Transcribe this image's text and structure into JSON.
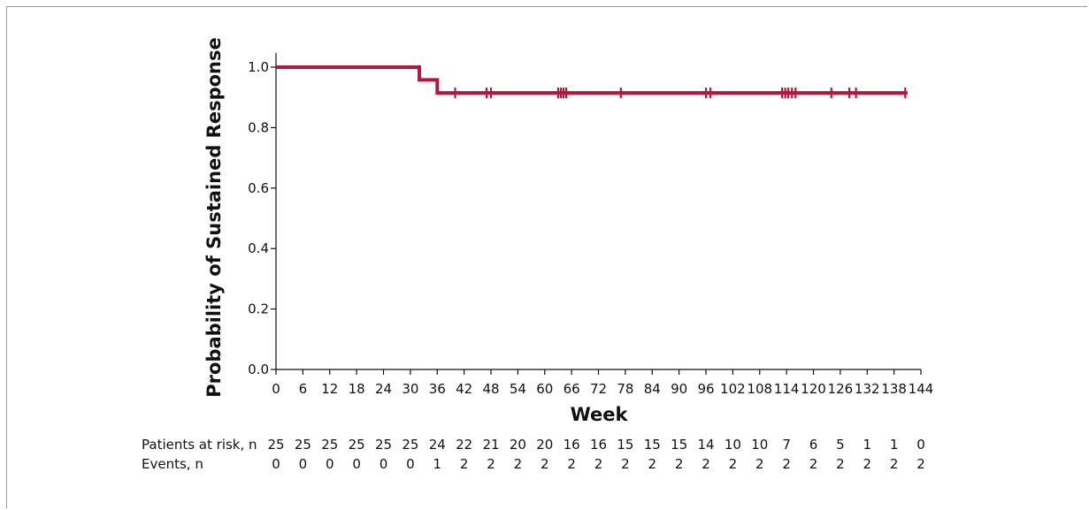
{
  "chart_data": {
    "type": "line",
    "title": "",
    "xlabel": "Week",
    "ylabel": "Probability of Sustained Response",
    "xlim": [
      0,
      144
    ],
    "ylim": [
      0.0,
      1.0
    ],
    "x_ticks": [
      0,
      6,
      12,
      18,
      24,
      30,
      36,
      42,
      48,
      54,
      60,
      66,
      72,
      78,
      84,
      90,
      96,
      102,
      108,
      114,
      120,
      126,
      132,
      138,
      144
    ],
    "x_tick_labels": [
      "0",
      "6",
      "12",
      "18",
      "24",
      "30",
      "36",
      "42",
      "48",
      "54",
      "60",
      "66",
      "72",
      "78",
      "84",
      "90",
      "96",
      "102",
      "108",
      "114",
      "120",
      "126",
      "132",
      "138",
      "144"
    ],
    "y_ticks": [
      0.0,
      0.2,
      0.4,
      0.6,
      0.8,
      1.0
    ],
    "y_tick_labels": [
      "0.0",
      "0.2",
      "0.4",
      "0.6",
      "0.8",
      "1.0"
    ],
    "grid": false,
    "line_color": "#b5163e",
    "series": [
      {
        "name": "",
        "steps": [
          {
            "x": 0,
            "y": 1.0
          },
          {
            "x": 32,
            "y": 1.0
          },
          {
            "x": 32,
            "y": 0.958
          },
          {
            "x": 36,
            "y": 0.958
          },
          {
            "x": 36,
            "y": 0.915
          },
          {
            "x": 141,
            "y": 0.915
          }
        ],
        "censor_times": [
          40,
          47,
          48,
          63,
          63.6,
          64.2,
          64.8,
          77,
          96,
          97,
          113,
          113.7,
          114.4,
          115.2,
          116,
          124,
          128,
          129.5,
          140.5
        ]
      }
    ]
  },
  "risk_table": {
    "rows": [
      {
        "label": "Patients at risk, n",
        "values": [
          "25",
          "25",
          "25",
          "25",
          "25",
          "25",
          "24",
          "22",
          "21",
          "20",
          "20",
          "16",
          "16",
          "15",
          "15",
          "15",
          "14",
          "10",
          "10",
          "7",
          "6",
          "5",
          "1",
          "1",
          "0"
        ]
      },
      {
        "label": "Events, n",
        "values": [
          "0",
          "0",
          "0",
          "0",
          "0",
          "0",
          "1",
          "2",
          "2",
          "2",
          "2",
          "2",
          "2",
          "2",
          "2",
          "2",
          "2",
          "2",
          "2",
          "2",
          "2",
          "2",
          "2",
          "2",
          "2"
        ]
      }
    ]
  }
}
